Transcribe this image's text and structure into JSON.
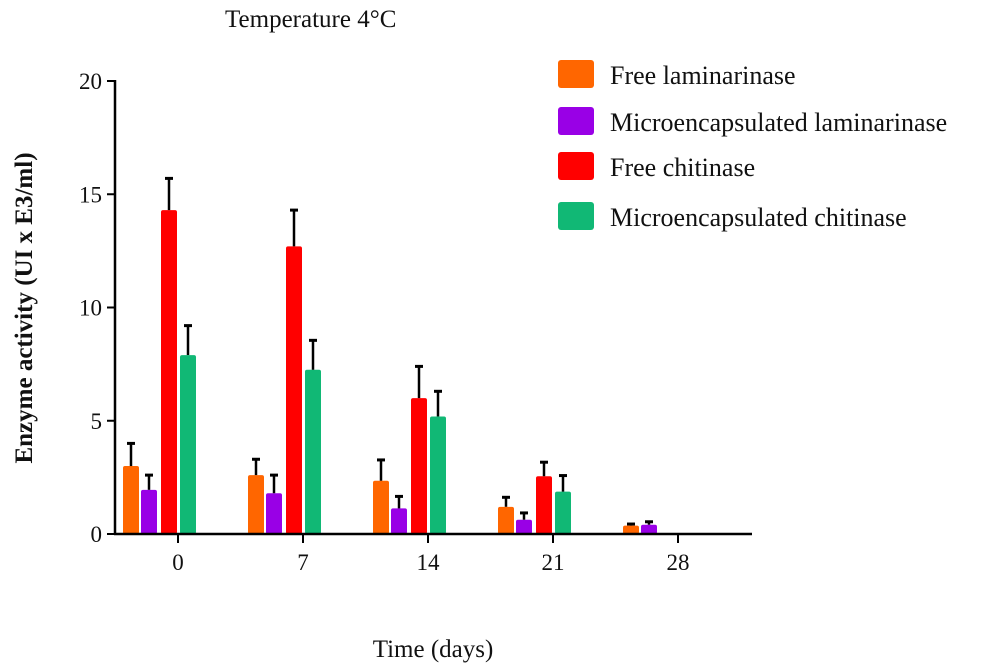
{
  "chart_data": {
    "type": "bar",
    "title": "Temperature 4°C",
    "xlabel": "Time (days)",
    "ylabel": "Enzyme activity (UI x E3/ml)",
    "ylim": [
      0,
      20
    ],
    "yticks": [
      "0",
      "5",
      "10",
      "15",
      "20"
    ],
    "categories": [
      "0",
      "7",
      "14",
      "21",
      "28"
    ],
    "legend_position": "top-right",
    "grid": false,
    "series": [
      {
        "name": "Free laminarinase",
        "color": "#ff6600",
        "values": [
          3.0,
          2.6,
          2.35,
          1.2,
          0.37
        ],
        "error_upper": [
          4.0,
          3.3,
          3.27,
          1.62,
          0.44
        ]
      },
      {
        "name": "Microencapsulated laminarinase",
        "color": "#9900e6",
        "values": [
          1.95,
          1.8,
          1.13,
          0.63,
          0.41
        ],
        "error_upper": [
          2.6,
          2.6,
          1.66,
          0.93,
          0.54
        ]
      },
      {
        "name": "Free chitinase",
        "color": "#ff0000",
        "values": [
          14.3,
          12.7,
          6.0,
          2.55,
          0
        ],
        "error_upper": [
          15.7,
          14.3,
          7.4,
          3.17,
          0
        ]
      },
      {
        "name": "Microencapsulated chitinase",
        "color": "#11b875",
        "values": [
          7.9,
          7.25,
          5.19,
          1.87,
          0
        ],
        "error_upper": [
          9.2,
          8.55,
          6.3,
          2.58,
          0
        ]
      }
    ]
  }
}
